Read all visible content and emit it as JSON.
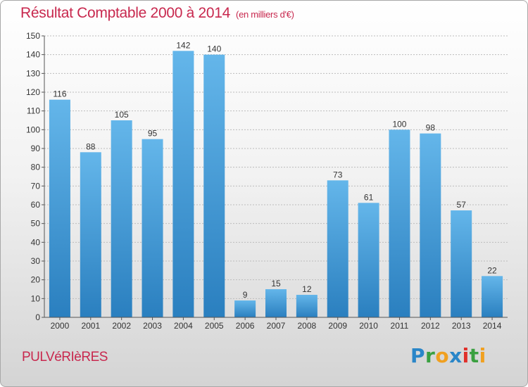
{
  "title": "Résultat Comptable 2000 à 2014",
  "subtitle": "(en milliers d'€)",
  "commune": "PULVéRIèRES",
  "logo": {
    "letters": [
      {
        "char": "P",
        "color": "#2a86c8"
      },
      {
        "char": "r",
        "color": "#3aa040"
      },
      {
        "char": "o",
        "color": "#f0a020"
      },
      {
        "char": "x",
        "color": "#2a86c8"
      },
      {
        "char": "i",
        "color": "#e0302a"
      },
      {
        "char": "t",
        "color": "#3aa040"
      },
      {
        "char": "i",
        "color": "#f0a020"
      }
    ]
  },
  "colors": {
    "title": "#c8284e",
    "bar_light": "#64b6ea",
    "bar_dark": "#2a7fbf"
  },
  "chart_data": {
    "type": "bar",
    "title": "Résultat Comptable 2000 à 2014",
    "ylabel": "(en milliers d'€)",
    "xlabel": "",
    "categories": [
      "2000",
      "2001",
      "2002",
      "2003",
      "2004",
      "2005",
      "2006",
      "2007",
      "2008",
      "2009",
      "2010",
      "2011",
      "2012",
      "2013",
      "2014"
    ],
    "values": [
      116,
      88,
      105,
      95,
      142,
      140,
      9,
      15,
      12,
      73,
      61,
      100,
      98,
      57,
      22
    ],
    "ylim": [
      0,
      150
    ],
    "yticks": [
      0,
      10,
      20,
      30,
      40,
      50,
      60,
      70,
      80,
      90,
      100,
      110,
      120,
      130,
      140,
      150
    ],
    "grid": true
  }
}
